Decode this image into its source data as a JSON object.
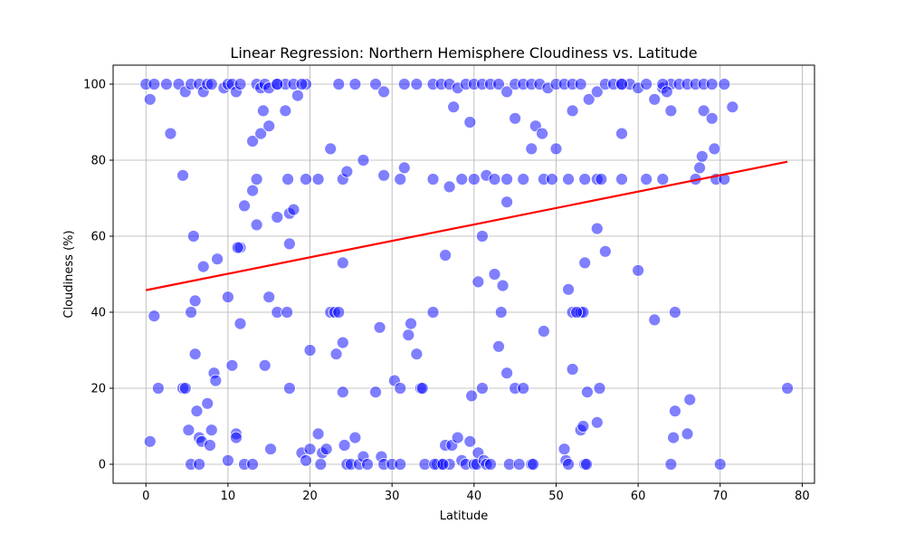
{
  "chart_data": {
    "type": "scatter",
    "title": "Linear Regression: Northern Hemisphere Cloudiness vs. Latitude",
    "xlabel": "Latitude",
    "ylabel": "Cloudiness (%)",
    "xlim": [
      -4,
      81.5
    ],
    "ylim": [
      -5,
      105
    ],
    "xticks": [
      0,
      10,
      20,
      30,
      40,
      50,
      60,
      70,
      80
    ],
    "yticks": [
      0,
      20,
      40,
      60,
      80,
      100
    ],
    "grid": true,
    "colors": {
      "points": "#0000ff",
      "regression": "#ff0000",
      "grid": "#b0b0b0"
    },
    "regression_line": {
      "x": [
        0,
        78.2
      ],
      "y": [
        45.8,
        79.6
      ]
    },
    "series": [
      {
        "values": [
          [
            0,
            100
          ],
          [
            0.5,
            96
          ],
          [
            1,
            100
          ],
          [
            2.5,
            100
          ],
          [
            3,
            87
          ],
          [
            4,
            100
          ],
          [
            4.5,
            76
          ],
          [
            4.8,
            98
          ],
          [
            5.5,
            100
          ],
          [
            6.5,
            100
          ],
          [
            7,
            98
          ],
          [
            7.5,
            100
          ],
          [
            8,
            100
          ],
          [
            9.5,
            99
          ],
          [
            10,
            100
          ],
          [
            10.5,
            100
          ],
          [
            11,
            98
          ],
          [
            11.5,
            100
          ],
          [
            13.5,
            100
          ],
          [
            14,
            99
          ],
          [
            14.5,
            100
          ],
          [
            15,
            99
          ],
          [
            16,
            100
          ],
          [
            17,
            100
          ],
          [
            18,
            100
          ],
          [
            18.5,
            97
          ],
          [
            19.5,
            100
          ],
          [
            23.5,
            100
          ],
          [
            25.5,
            100
          ],
          [
            28,
            100
          ],
          [
            29,
            98
          ],
          [
            31.5,
            100
          ],
          [
            33,
            100
          ],
          [
            35,
            100
          ],
          [
            36,
            100
          ],
          [
            37,
            100
          ],
          [
            38,
            99
          ],
          [
            39,
            100
          ],
          [
            40,
            100
          ],
          [
            41,
            100
          ],
          [
            42,
            100
          ],
          [
            43,
            100
          ],
          [
            44,
            98
          ],
          [
            45,
            100
          ],
          [
            46,
            100
          ],
          [
            47,
            100
          ],
          [
            48,
            100
          ],
          [
            49,
            99
          ],
          [
            50,
            100
          ],
          [
            51,
            100
          ],
          [
            52,
            100
          ],
          [
            53,
            100
          ],
          [
            54,
            96
          ],
          [
            55,
            98
          ],
          [
            56,
            100
          ],
          [
            57,
            100
          ],
          [
            58,
            100
          ],
          [
            59,
            100
          ],
          [
            60,
            99
          ],
          [
            61,
            100
          ],
          [
            62,
            96
          ],
          [
            63,
            99
          ],
          [
            64,
            100
          ],
          [
            65,
            100
          ],
          [
            66,
            100
          ],
          [
            67,
            100
          ],
          [
            68,
            100
          ],
          [
            69,
            100
          ],
          [
            70.5,
            100
          ],
          [
            71.5,
            94
          ],
          [
            13,
            85
          ],
          [
            13.5,
            75
          ],
          [
            14,
            87
          ],
          [
            14.3,
            93
          ],
          [
            15,
            89
          ],
          [
            16,
            100
          ],
          [
            17,
            93
          ],
          [
            17.3,
            75
          ],
          [
            19,
            100
          ],
          [
            22.5,
            83
          ],
          [
            24,
            75
          ],
          [
            24.5,
            77
          ],
          [
            26.5,
            80
          ],
          [
            29,
            76
          ],
          [
            31,
            75
          ],
          [
            31.5,
            78
          ],
          [
            35,
            75
          ],
          [
            37.5,
            94
          ],
          [
            38.5,
            75
          ],
          [
            39.5,
            90
          ],
          [
            40,
            75
          ],
          [
            41.5,
            76
          ],
          [
            42.5,
            75
          ],
          [
            44,
            75
          ],
          [
            45,
            91
          ],
          [
            46,
            75
          ],
          [
            47,
            83
          ],
          [
            47.5,
            89
          ],
          [
            48.3,
            87
          ],
          [
            48.5,
            75
          ],
          [
            49.5,
            75
          ],
          [
            50,
            83
          ],
          [
            51.5,
            75
          ],
          [
            52,
            93
          ],
          [
            53.5,
            75
          ],
          [
            55,
            75
          ],
          [
            55.5,
            75
          ],
          [
            58,
            87
          ],
          [
            58,
            75
          ],
          [
            61,
            75
          ],
          [
            63,
            75
          ],
          [
            64,
            93
          ],
          [
            67,
            75
          ],
          [
            67.5,
            78
          ],
          [
            67.8,
            81
          ],
          [
            68,
            93
          ],
          [
            69,
            91
          ],
          [
            69.3,
            83
          ],
          [
            69.5,
            75
          ],
          [
            70.5,
            75
          ],
          [
            13,
            72
          ],
          [
            13.5,
            63
          ],
          [
            12,
            68
          ],
          [
            11.5,
            57
          ],
          [
            11.2,
            57
          ],
          [
            16,
            65
          ],
          [
            17.5,
            66
          ],
          [
            18,
            67
          ],
          [
            17.5,
            58
          ],
          [
            21,
            75
          ],
          [
            19.5,
            75
          ],
          [
            24,
            53
          ],
          [
            36.5,
            55
          ],
          [
            37,
            73
          ],
          [
            40.5,
            48
          ],
          [
            41,
            60
          ],
          [
            42.5,
            50
          ],
          [
            43.5,
            47
          ],
          [
            44,
            69
          ],
          [
            51.5,
            46
          ],
          [
            53.5,
            53
          ],
          [
            55,
            62
          ],
          [
            56,
            56
          ],
          [
            60,
            51
          ],
          [
            62,
            38
          ],
          [
            64.5,
            40
          ],
          [
            52,
            40
          ],
          [
            53,
            40
          ],
          [
            53.3,
            40
          ],
          [
            4.5,
            20
          ],
          [
            5.2,
            9
          ],
          [
            5.5,
            40
          ],
          [
            5.8,
            60
          ],
          [
            6,
            43
          ],
          [
            6,
            29
          ],
          [
            6.2,
            14
          ],
          [
            6.5,
            7
          ],
          [
            6.8,
            6
          ],
          [
            7,
            52
          ],
          [
            7.5,
            16
          ],
          [
            7.8,
            5
          ],
          [
            8,
            9
          ],
          [
            8.3,
            24
          ],
          [
            8.5,
            22
          ],
          [
            8.7,
            54
          ],
          [
            10,
            44
          ],
          [
            10.5,
            26
          ],
          [
            11,
            8
          ],
          [
            11,
            7
          ],
          [
            11.5,
            37
          ],
          [
            12,
            0
          ],
          [
            13,
            0
          ],
          [
            14.5,
            26
          ],
          [
            15,
            44
          ],
          [
            15.2,
            4
          ],
          [
            16,
            40
          ],
          [
            17.2,
            40
          ],
          [
            17.5,
            20
          ],
          [
            19,
            3
          ],
          [
            19.5,
            1
          ],
          [
            20,
            30
          ],
          [
            20,
            4
          ],
          [
            21,
            8
          ],
          [
            21.3,
            0
          ],
          [
            21.5,
            3
          ],
          [
            22,
            4
          ],
          [
            22.5,
            40
          ],
          [
            23,
            40
          ],
          [
            23.2,
            29
          ],
          [
            23.5,
            40
          ],
          [
            24,
            32
          ],
          [
            24,
            19
          ],
          [
            24.2,
            5
          ],
          [
            24.5,
            0
          ],
          [
            25,
            0
          ],
          [
            25.5,
            7
          ],
          [
            26,
            0
          ],
          [
            26.5,
            2
          ],
          [
            27,
            0
          ],
          [
            28,
            19
          ],
          [
            28.5,
            36
          ],
          [
            28.7,
            2
          ],
          [
            29,
            0
          ],
          [
            30,
            0
          ],
          [
            30.3,
            22
          ],
          [
            31,
            20
          ],
          [
            32,
            34
          ],
          [
            32.3,
            37
          ],
          [
            33,
            29
          ],
          [
            33.5,
            20
          ],
          [
            33.7,
            20
          ],
          [
            34,
            0
          ],
          [
            35,
            40
          ],
          [
            35.5,
            0
          ],
          [
            36,
            0
          ],
          [
            36.5,
            5
          ],
          [
            37,
            0
          ],
          [
            37.3,
            5
          ],
          [
            38,
            7
          ],
          [
            38.5,
            1
          ],
          [
            39,
            0
          ],
          [
            39.5,
            6
          ],
          [
            39.7,
            18
          ],
          [
            40,
            0
          ],
          [
            40.3,
            0
          ],
          [
            40.5,
            3
          ],
          [
            41,
            20
          ],
          [
            41.2,
            1
          ],
          [
            41.5,
            0
          ],
          [
            42,
            0
          ],
          [
            43,
            31
          ],
          [
            43.3,
            40
          ],
          [
            44,
            24
          ],
          [
            44.3,
            0
          ],
          [
            45,
            20
          ],
          [
            45.5,
            0
          ],
          [
            46,
            20
          ],
          [
            47,
            0
          ],
          [
            47.2,
            0
          ],
          [
            51,
            4
          ],
          [
            51.2,
            1
          ],
          [
            51.5,
            0
          ],
          [
            52,
            25
          ],
          [
            52.5,
            40
          ],
          [
            53,
            9
          ],
          [
            53.3,
            10
          ],
          [
            53.5,
            0
          ],
          [
            53.7,
            0
          ],
          [
            53.8,
            19
          ],
          [
            55,
            11
          ],
          [
            55.3,
            20
          ],
          [
            58,
            100
          ],
          [
            63,
            100
          ],
          [
            63.5,
            98
          ],
          [
            64,
            0
          ],
          [
            64.3,
            7
          ],
          [
            64.5,
            14
          ],
          [
            66,
            8
          ],
          [
            66.3,
            17
          ],
          [
            70,
            0
          ],
          [
            78.2,
            20
          ],
          [
            0.5,
            6
          ],
          [
            1,
            39
          ],
          [
            1.5,
            20
          ],
          [
            4.8,
            20
          ],
          [
            5.5,
            0
          ],
          [
            6.5,
            0
          ],
          [
            10,
            1
          ],
          [
            31,
            0
          ],
          [
            35.2,
            0
          ],
          [
            36.2,
            0
          ],
          [
            48.5,
            35
          ]
        ]
      }
    ]
  }
}
